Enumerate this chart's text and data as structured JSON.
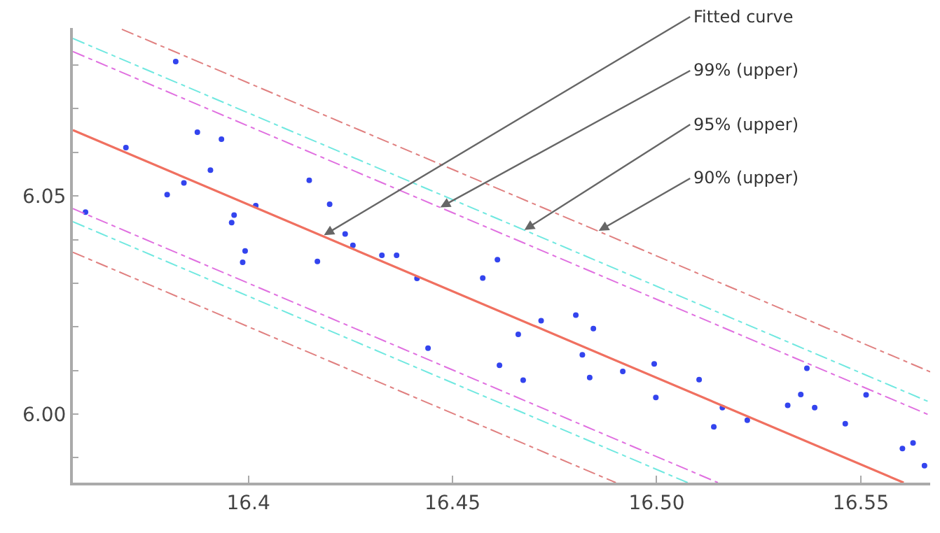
{
  "chart_data": {
    "type": "scatter",
    "xlim": [
      16.357,
      16.567
    ],
    "ylim": [
      5.9843,
      6.0885
    ],
    "xticks": [
      16.4,
      {
        "value": 16.45,
        "label": "16.45"
      },
      {
        "value": 16.5,
        "label": "16.50"
      },
      {
        "value": 16.55,
        "label": "16.55"
      }
    ],
    "yticks": [
      {
        "value": 5.99,
        "label": null
      },
      {
        "value": 6.0,
        "label": "6.00"
      },
      {
        "value": 6.01,
        "label": null
      },
      {
        "value": 6.02,
        "label": null
      },
      {
        "value": 6.03,
        "label": null
      },
      {
        "value": 6.04,
        "label": null
      },
      {
        "value": 6.05,
        "label": "6.05"
      },
      {
        "value": 6.06,
        "label": null
      },
      {
        "value": 6.07,
        "label": null
      },
      {
        "value": 6.08,
        "label": null
      }
    ],
    "series": [
      {
        "marker": "circle",
        "color": "#3344ee",
        "x": [
          16.3822,
          16.37,
          16.3875,
          16.3934,
          16.3907,
          16.3801,
          16.3842,
          16.3601,
          16.4018,
          16.3965,
          16.3959,
          16.4149,
          16.4199,
          16.4237,
          16.4256,
          16.4327,
          16.4363,
          16.3992,
          16.3986,
          16.4169,
          16.4413,
          16.444,
          16.461,
          16.4574,
          16.4717,
          16.4661,
          16.4802,
          16.4845,
          16.4818,
          16.4615,
          16.4673,
          16.4836,
          16.4917,
          16.4994,
          16.4998,
          16.5104,
          16.5161,
          16.514,
          16.5222,
          16.5368,
          16.5353,
          16.5321,
          16.5387,
          16.5513,
          16.5462,
          16.5602,
          16.5628,
          16.5656
        ],
        "values": [
          6.0808,
          6.0611,
          6.0646,
          6.063,
          6.0559,
          6.0503,
          6.053,
          6.0463,
          6.0478,
          6.0456,
          6.0439,
          6.0536,
          6.0481,
          6.0413,
          6.0387,
          6.0364,
          6.0364,
          6.0374,
          6.0348,
          6.035,
          6.0311,
          6.0151,
          6.0354,
          6.0312,
          6.0214,
          6.0183,
          6.0227,
          6.0196,
          6.0136,
          6.0112,
          6.0078,
          6.0084,
          6.0098,
          6.0115,
          6.0038,
          6.0079,
          6.0015,
          5.9971,
          5.9986,
          6.0105,
          6.0045,
          6.002,
          6.0015,
          6.0044,
          5.9978,
          5.9921,
          5.9934,
          5.9882
        ]
      },
      {
        "type": "line",
        "marker": "none",
        "line_style": "solid",
        "color": "#f07060",
        "x": [
          16.357,
          16.5605
        ],
        "values": [
          6.0651,
          5.9843
        ]
      },
      {
        "type": "line",
        "marker": "none",
        "line_style": "dashed",
        "color": "#e070e0",
        "x": [
          16.357,
          16.567
        ],
        "values": [
          6.0831,
          5.9997
        ]
      },
      {
        "type": "line",
        "marker": "none",
        "line_style": "dashed",
        "color": "#70e8e0",
        "x": [
          16.357,
          16.567
        ],
        "values": [
          6.0861,
          6.0027
        ]
      },
      {
        "type": "line",
        "marker": "none",
        "line_style": "dashed",
        "color": "#e08080",
        "x": [
          16.369,
          16.567
        ],
        "values": [
          6.0882,
          6.0097
        ]
      },
      {
        "type": "line",
        "marker": "none",
        "line_style": "dashed",
        "color": "#e070e0",
        "x": [
          16.357,
          16.515
        ],
        "values": [
          6.0471,
          5.9843
        ]
      },
      {
        "type": "line",
        "marker": "none",
        "line_style": "dashed",
        "color": "#70e8e0",
        "x": [
          16.357,
          16.5076
        ],
        "values": [
          6.0441,
          5.9843
        ]
      },
      {
        "type": "line",
        "marker": "none",
        "line_style": "dashed",
        "color": "#e08080",
        "x": [
          16.357,
          16.49
        ],
        "values": [
          6.0371,
          5.9843
        ]
      }
    ],
    "annotations": [
      {
        "text": "Fitted curve",
        "x": 16.4185,
        "y": 6.041
      },
      {
        "text": "99% (upper)",
        "x": 16.447,
        "y": 6.0474
      },
      {
        "text": "95% (upper)",
        "x": 16.4676,
        "y": 6.0422
      },
      {
        "text": "90% (upper)",
        "x": 16.4858,
        "y": 6.042
      }
    ]
  }
}
